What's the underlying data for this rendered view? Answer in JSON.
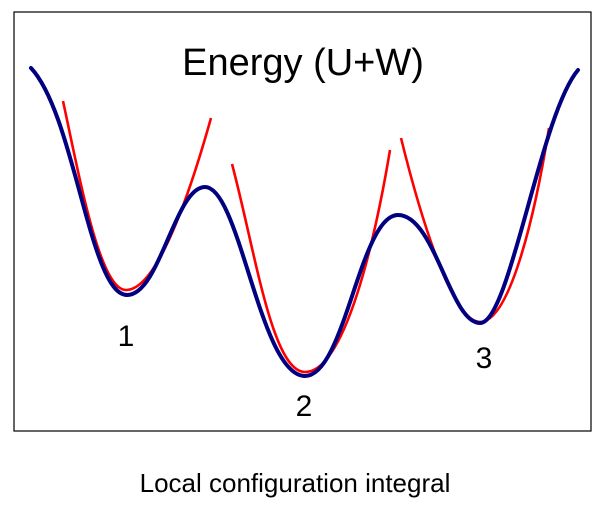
{
  "title": "Energy (U+W)",
  "caption": "Local configuration integral",
  "well_labels": [
    "1",
    "2",
    "3"
  ],
  "colors": {
    "frame": "#000000",
    "energy_curve": "#000080",
    "local_fit": "#ff0000",
    "text": "#000000",
    "background": "#ffffff"
  }
}
